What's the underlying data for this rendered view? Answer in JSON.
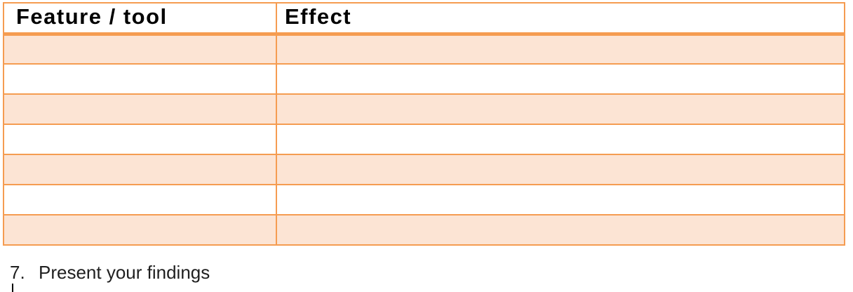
{
  "table": {
    "columns": [
      {
        "label": "Feature / tool"
      },
      {
        "label": "Effect"
      }
    ],
    "rows": [
      [
        "",
        ""
      ],
      [
        "",
        ""
      ],
      [
        "",
        ""
      ],
      [
        "",
        ""
      ],
      [
        "",
        ""
      ],
      [
        "",
        ""
      ],
      [
        "",
        ""
      ]
    ],
    "style": {
      "border_color": "#F59C51",
      "banded_row_color": "#FCE4D4",
      "header_bg": "#FFFFFF",
      "header_text_color": "#000000"
    }
  },
  "paragraph": {
    "number": "7.",
    "text": "Present your findings"
  },
  "cursor": {
    "visible": true
  }
}
